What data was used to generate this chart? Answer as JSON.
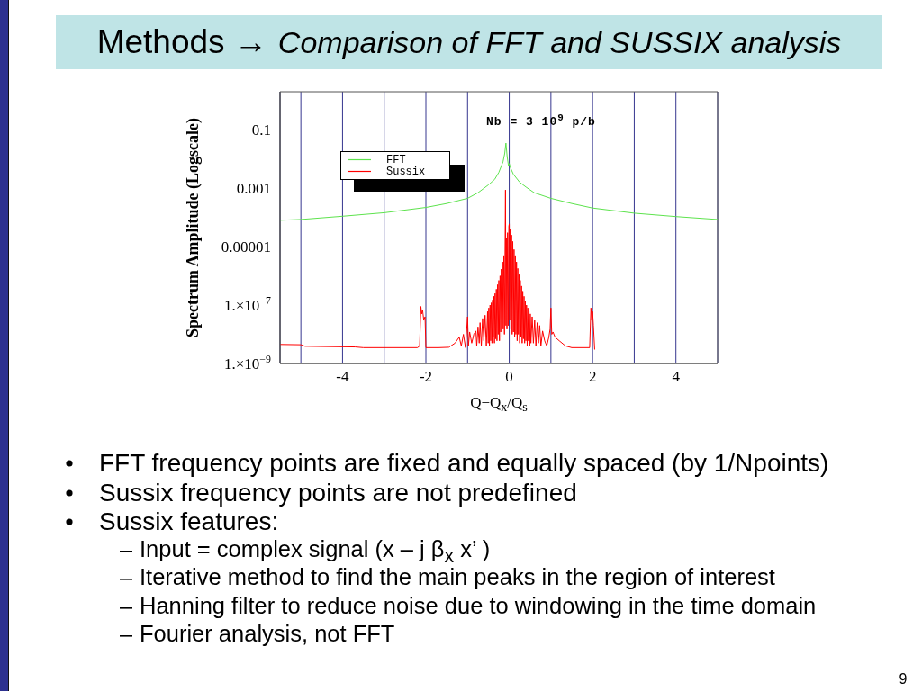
{
  "chart_data": {
    "type": "line",
    "title": "Methods →",
    "subtitle": "Comparison of FFT and SUSSIX analysis",
    "xlabel": "Q−Q$_{x}$/Q$_{s}$",
    "ylabel": "Spectrum Amplitude (Logscale)",
    "annotations": [
      "Nb = 3 10$^{9}$ p/b",
      "FFT frequency points are fixed and equally spaced (by 1/Npoints)",
      "Sussix frequency points are not predefined",
      "Sussix features:",
      "Input = complex signal (x – j β$_{x}$ x’ )",
      "Iterative method to find the main peaks in the region of interest",
      "Hanning filter to reduce noise due to windowing in the time domain",
      "Fourier analysis, not FFT",
      "9"
    ],
    "series": [
      {
        "name": "FFT",
        "color": "#5ee34e",
        "x": [
          -5.5,
          -5,
          -4,
          -3,
          -2,
          -1.5,
          -1,
          -0.75,
          -0.5,
          -0.35,
          -0.25,
          -0.15,
          -0.11,
          -0.08,
          -0.05,
          -0.02,
          0,
          0.03,
          0.1,
          0.25,
          0.4,
          0.6,
          1,
          1.5,
          2,
          3,
          4,
          5
        ],
        "values": [
          8e-05,
          8.5e-05,
          0.00011,
          0.000145,
          0.00022,
          0.0003,
          0.00045,
          0.0007,
          0.0013,
          0.002,
          0.0035,
          0.008,
          0.015,
          0.035,
          0.012,
          0.006,
          0.007,
          0.005,
          0.003,
          0.0016,
          0.0011,
          0.0007,
          0.00045,
          0.0003,
          0.00021,
          0.00014,
          0.000107,
          8.5e-05
        ]
      },
      {
        "name": "Sussix",
        "color": "#ff0000",
        "x": [
          -5.5,
          -5,
          -4.9,
          -3.7,
          -3.5,
          -2.2,
          -2.15,
          -2.12,
          -2.1,
          -2.08,
          -2.05,
          -2.02,
          -2,
          -1.7,
          -1.45,
          -1.3,
          -1.2,
          -1.15,
          -1.1,
          -1.05,
          -1,
          -0.98,
          -0.95,
          -0.9,
          -0.85,
          -0.8,
          -0.78,
          -0.75,
          -0.72,
          -0.7,
          -0.67,
          -0.64,
          -0.61,
          -0.58,
          -0.55,
          -0.52,
          -0.505,
          -0.49,
          -0.475,
          -0.46,
          -0.445,
          -0.43,
          -0.415,
          -0.4,
          -0.385,
          -0.37,
          -0.355,
          -0.34,
          -0.325,
          -0.31,
          -0.295,
          -0.28,
          -0.265,
          -0.25,
          -0.235,
          -0.22,
          -0.205,
          -0.19,
          -0.175,
          -0.16,
          -0.145,
          -0.13,
          -0.115,
          -0.1,
          -0.09,
          -0.08,
          -0.07,
          -0.055,
          -0.04,
          -0.025,
          -0.01,
          0,
          0.01,
          0.025,
          0.04,
          0.055,
          0.07,
          0.085,
          0.1,
          0.115,
          0.13,
          0.145,
          0.16,
          0.175,
          0.19,
          0.205,
          0.22,
          0.235,
          0.25,
          0.265,
          0.28,
          0.295,
          0.31,
          0.325,
          0.34,
          0.355,
          0.37,
          0.385,
          0.4,
          0.415,
          0.43,
          0.445,
          0.46,
          0.475,
          0.49,
          0.505,
          0.52,
          0.55,
          0.58,
          0.61,
          0.64,
          0.67,
          0.7,
          0.73,
          0.76,
          0.8,
          0.85,
          0.9,
          0.95,
          0.98,
          1,
          1.02,
          1.05,
          1.1,
          1.2,
          1.35,
          1.5,
          1.93,
          1.96,
          1.98,
          2,
          2.02,
          2.05
        ],
        "values": [
          4.5e-09,
          4.4e-09,
          3.9e-09,
          3.7e-09,
          3.5e-09,
          3.5e-09,
          4e-09,
          9e-08,
          5e-08,
          7e-08,
          3e-08,
          4e-08,
          3.5e-09,
          3.5e-09,
          3.6e-09,
          5e-09,
          8e-09,
          4e-09,
          1e-08,
          3.5e-09,
          4e-08,
          4e-09,
          1.2e-08,
          5e-09,
          1e-08,
          1.3e-08,
          4e-09,
          1.8e-08,
          5e-09,
          2.5e-08,
          4e-09,
          3.5e-08,
          6e-09,
          4.5e-08,
          4e-09,
          6e-08,
          5e-09,
          8e-08,
          4e-09,
          1e-07,
          6e-09,
          1.2e-07,
          5e-09,
          1.5e-07,
          8e-09,
          2e-07,
          5e-09,
          2.5e-07,
          7e-09,
          3.5e-07,
          6e-09,
          5e-07,
          1e-08,
          7e-07,
          6e-09,
          1e-06,
          1.2e-08,
          1.7e-06,
          8e-09,
          3e-06,
          1.5e-08,
          5e-06,
          1e-08,
          1e-05,
          0.00087,
          2e-08,
          2e-05,
          1.5e-08,
          3e-05,
          2e-08,
          5e-05,
          6e-05,
          3e-08,
          4e-05,
          1.5e-08,
          2.5e-05,
          1e-08,
          1.5e-05,
          1.2e-08,
          8e-06,
          8e-09,
          5e-06,
          1e-08,
          3e-06,
          6e-09,
          1.8e-06,
          1e-08,
          1.1e-06,
          5e-09,
          7e-07,
          8e-09,
          4.5e-07,
          5e-09,
          3e-07,
          7e-09,
          2e-07,
          5e-09,
          1.4e-07,
          6e-09,
          1e-07,
          4e-09,
          8e-08,
          6e-09,
          6e-08,
          4e-09,
          5e-08,
          5e-09,
          4e-08,
          5e-09,
          3e-08,
          4e-09,
          2.5e-08,
          5e-09,
          2e-08,
          4e-09,
          1.3e-08,
          6e-09,
          4e-09,
          8e-09,
          1.5e-08,
          8e-08,
          1e-08,
          1.2e-08,
          8e-09,
          6e-09,
          4e-09,
          3.5e-09,
          3.5e-09,
          8e-08,
          3e-08,
          6e-08,
          2e-08,
          3e-09
        ]
      }
    ],
    "xlim": [
      -5.5,
      5
    ],
    "ylim": [
      1e-09,
      2
    ],
    "xticks": [
      {
        "value": -5,
        "label": null
      },
      -4,
      {
        "value": -3,
        "label": null
      },
      -2,
      {
        "value": -1,
        "label": null
      },
      0,
      {
        "value": 1,
        "label": null
      },
      2,
      {
        "value": 3,
        "label": null
      },
      4
    ],
    "yticks": [
      0.1,
      0.001,
      {
        "value": 1e-05,
        "label": "0.00001"
      },
      {
        "value": 1e-07,
        "label": "1.×10$^{−7}$"
      },
      {
        "value": 1e-09,
        "label": "1.×10$^{−9}$"
      }
    ],
    "log": true,
    "grid": "x",
    "legend": "top left"
  }
}
